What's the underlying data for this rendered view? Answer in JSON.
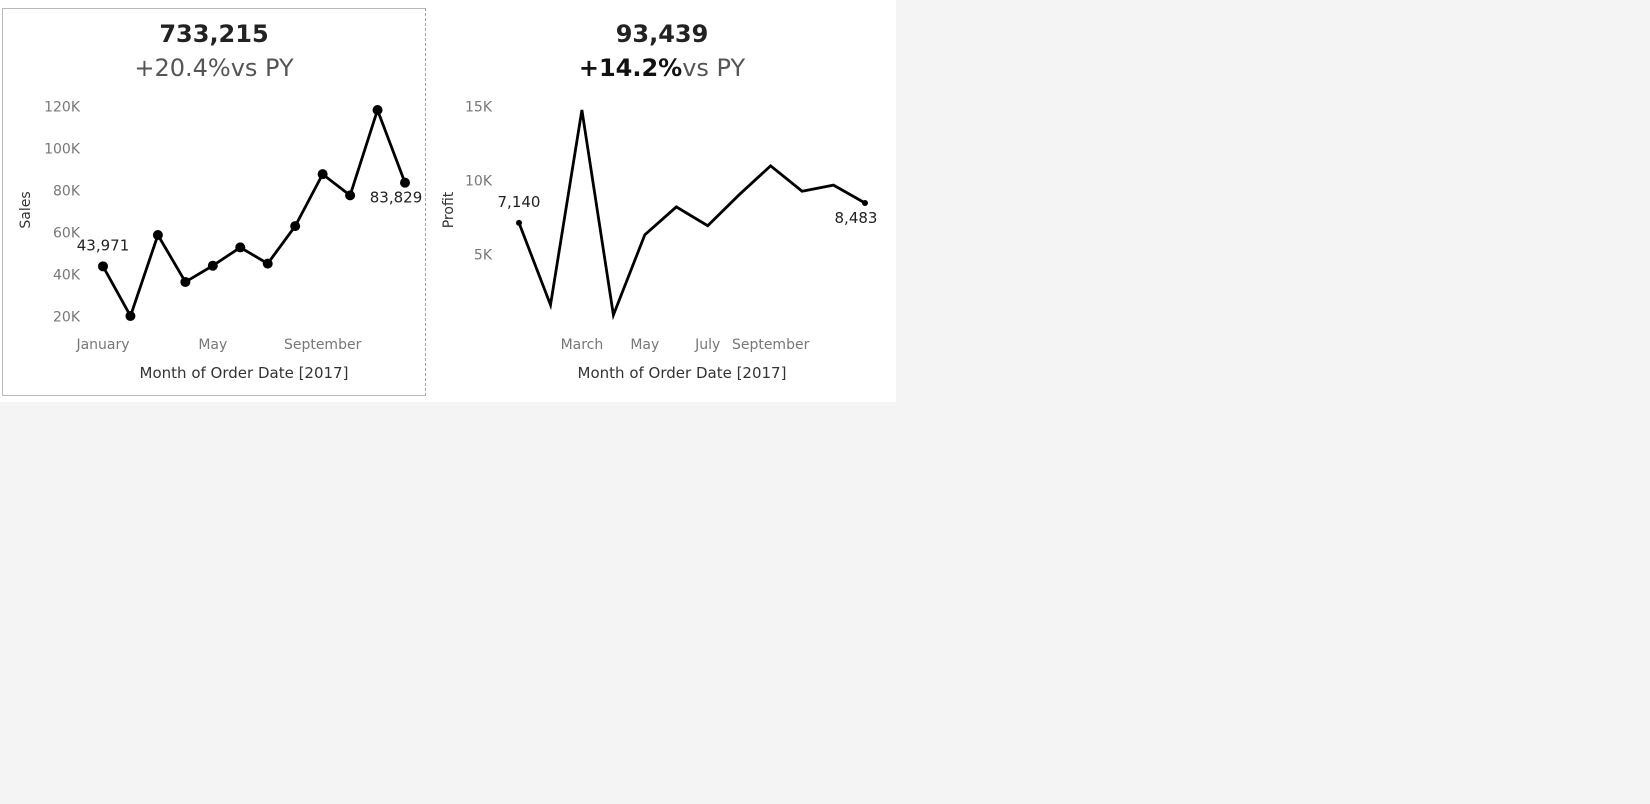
{
  "chart_data": [
    {
      "type": "line",
      "kpi_value": "733,215",
      "kpi_change": "+20.4%",
      "kpi_suffix": "vs PY",
      "ylabel": "Sales",
      "xlabel": "Month of Order Date [2017]",
      "x": [
        "January",
        "February",
        "March",
        "April",
        "May",
        "June",
        "July",
        "August",
        "September",
        "October",
        "November",
        "December"
      ],
      "x_tick_labels": [
        {
          "month": "January",
          "label": "January"
        },
        {
          "month": "May",
          "label": "May"
        },
        {
          "month": "September",
          "label": "September"
        }
      ],
      "y_ticks": [
        {
          "value": 20000,
          "label": "20K"
        },
        {
          "value": 40000,
          "label": "40K"
        },
        {
          "value": 60000,
          "label": "60K"
        },
        {
          "value": 80000,
          "label": "80K"
        },
        {
          "value": 100000,
          "label": "100K"
        },
        {
          "value": 120000,
          "label": "120K"
        }
      ],
      "series": [
        {
          "values": [
            43971,
            20301,
            58872,
            36522,
            44261,
            52982,
            45264,
            63121,
            87867,
            77777,
            118448,
            83829
          ]
        }
      ],
      "data_labels": [
        {
          "month": "January",
          "text": "43,971"
        },
        {
          "month": "December",
          "text": "83,829"
        }
      ],
      "markers": "all",
      "color": "#000000"
    },
    {
      "type": "line",
      "kpi_value": "93,439",
      "kpi_change": "+14.2%",
      "kpi_suffix": "vs PY",
      "ylabel": "Profit",
      "xlabel": "Month of Order Date [2017]",
      "x": [
        "January",
        "February",
        "March",
        "April",
        "May",
        "June",
        "July",
        "August",
        "September",
        "October",
        "November",
        "December"
      ],
      "x_tick_labels": [
        {
          "month": "March",
          "label": "March"
        },
        {
          "month": "May",
          "label": "May"
        },
        {
          "month": "July",
          "label": "July"
        },
        {
          "month": "September",
          "label": "September"
        }
      ],
      "y_ticks": [
        {
          "value": 5000,
          "label": "5K"
        },
        {
          "value": 10000,
          "label": "10K"
        },
        {
          "value": 15000,
          "label": "15K"
        }
      ],
      "series": [
        {
          "values": [
            7140,
            1614,
            14752,
            933,
            6342,
            8223,
            6953,
            9040,
            10992,
            9275,
            9690,
            8483
          ]
        }
      ],
      "data_labels": [
        {
          "month": "January",
          "text": "7,140"
        },
        {
          "month": "December",
          "text": "8,483"
        }
      ],
      "markers": "endpoints",
      "color": "#000000"
    }
  ]
}
